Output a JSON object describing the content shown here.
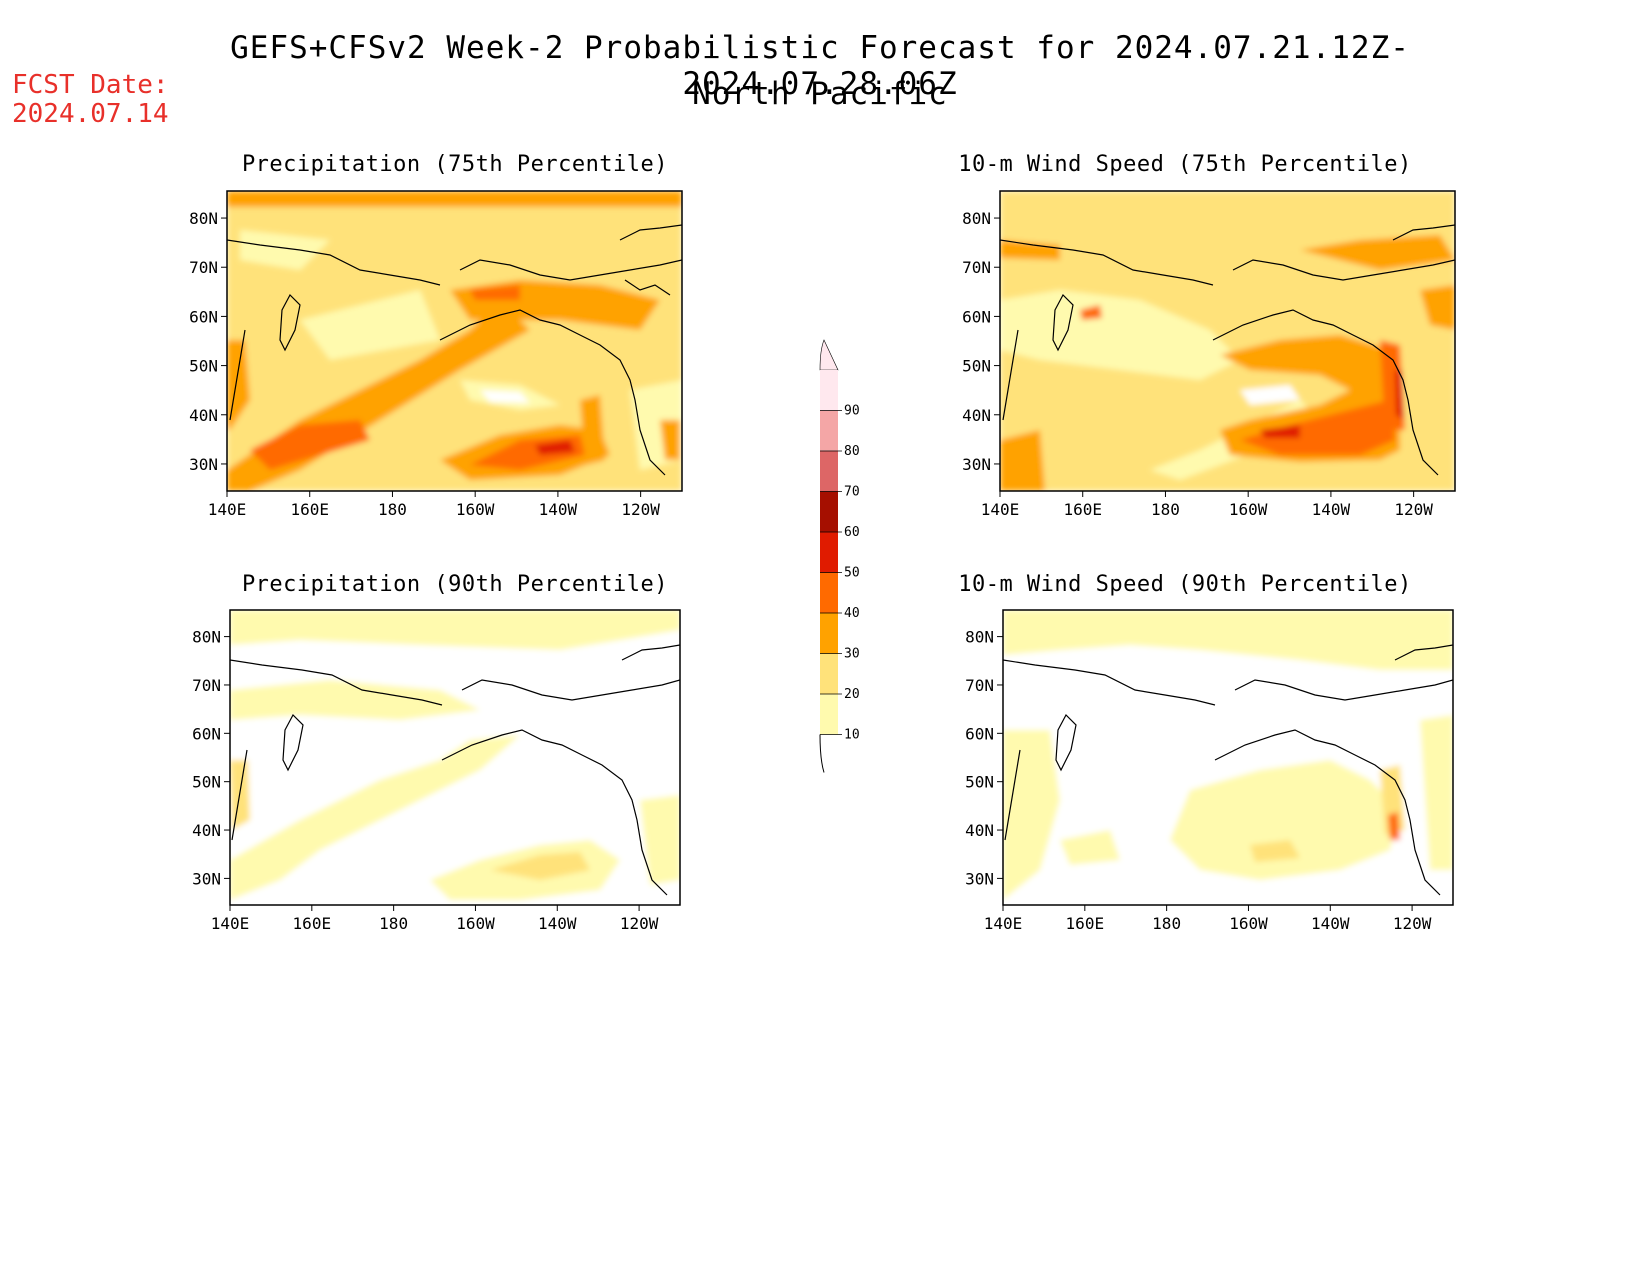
{
  "title": {
    "line1": "GEFS+CFSv2 Week-2 Probabilistic Forecast for 2024.07.21.12Z-2024.07.28.06Z",
    "line2": "North Pacific"
  },
  "fcst_date": {
    "label": "FCST Date:",
    "value": "2024.07.14"
  },
  "panels": [
    {
      "id": "precip-75",
      "title": "Precipitation (75th Percentile)"
    },
    {
      "id": "wind-75",
      "title": "10-m Wind Speed (75th Percentile)"
    },
    {
      "id": "precip-90",
      "title": "Precipitation (90th Percentile)"
    },
    {
      "id": "wind-90",
      "title": "10-m Wind Speed (90th Percentile)"
    }
  ],
  "axes": {
    "x_ticks": [
      "140E",
      "160E",
      "180",
      "160W",
      "140W",
      "120W"
    ],
    "y_ticks": [
      "80N",
      "70N",
      "60N",
      "50N",
      "40N",
      "30N"
    ]
  },
  "colorbar": {
    "labels": [
      "10",
      "20",
      "30",
      "40",
      "50",
      "60",
      "70",
      "80",
      "90"
    ],
    "colors": [
      "#fffaae",
      "#ffe27a",
      "#ffa200",
      "#ff6a00",
      "#e01b00",
      "#a50f00",
      "#dd6666",
      "#f4a6a6",
      "#ffe8ee"
    ]
  }
}
